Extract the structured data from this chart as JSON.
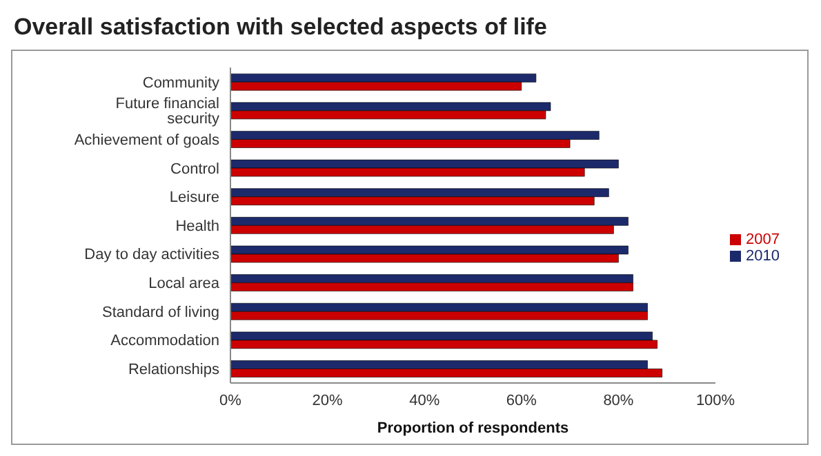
{
  "chart_data": {
    "type": "bar",
    "orientation": "horizontal",
    "title": "Overall satisfaction with selected aspects of life",
    "xlabel": "Proportion of respondents",
    "categories": [
      "Community",
      "Future financial security",
      "Achievement of goals",
      "Control",
      "Leisure",
      "Health",
      "Day to day activities",
      "Local area",
      "Standard of living",
      "Accommodation",
      "Relationships"
    ],
    "series": [
      {
        "name": "2010",
        "color": "#1c2a6b",
        "values": [
          63,
          66,
          76,
          80,
          78,
          82,
          82,
          83,
          86,
          87,
          86
        ]
      },
      {
        "name": "2007",
        "color": "#cc0000",
        "values": [
          60,
          65,
          70,
          73,
          75,
          79,
          80,
          83,
          86,
          88,
          89
        ]
      }
    ],
    "xlim": [
      0,
      100
    ],
    "xticks": [
      {
        "value": 0,
        "label": "0%"
      },
      {
        "value": 20,
        "label": "20%"
      },
      {
        "value": 40,
        "label": "40%"
      },
      {
        "value": 60,
        "label": "60%"
      },
      {
        "value": 80,
        "label": "80%"
      },
      {
        "value": 100,
        "label": "100%"
      }
    ],
    "legend": "right",
    "grid": false
  }
}
